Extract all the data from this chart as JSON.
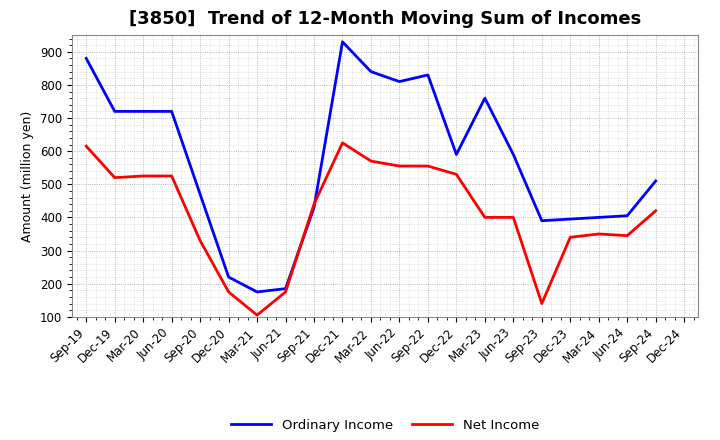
{
  "title": "[3850]  Trend of 12-Month Moving Sum of Incomes",
  "ylabel": "Amount (million yen)",
  "background_color": "#ffffff",
  "grid_color": "#999999",
  "x_labels": [
    "Sep-19",
    "Dec-19",
    "Mar-20",
    "Jun-20",
    "Sep-20",
    "Dec-20",
    "Mar-21",
    "Jun-21",
    "Sep-21",
    "Dec-21",
    "Mar-22",
    "Jun-22",
    "Sep-22",
    "Dec-22",
    "Mar-23",
    "Jun-23",
    "Sep-23",
    "Dec-23",
    "Mar-24",
    "Jun-24",
    "Sep-24",
    "Dec-24"
  ],
  "ordinary_income": [
    880,
    720,
    720,
    720,
    470,
    220,
    175,
    185,
    430,
    930,
    840,
    810,
    830,
    590,
    760,
    590,
    390,
    395,
    400,
    405,
    510,
    null
  ],
  "net_income": [
    615,
    520,
    525,
    525,
    330,
    175,
    105,
    175,
    440,
    625,
    570,
    555,
    555,
    530,
    400,
    400,
    140,
    340,
    350,
    345,
    420,
    null
  ],
  "ordinary_color": "#0000ff",
  "net_color": "#ff0000",
  "ylim": [
    100,
    950
  ],
  "yticks": [
    100,
    200,
    300,
    400,
    500,
    600,
    700,
    800,
    900
  ],
  "line_width": 2.0,
  "legend_labels": [
    "Ordinary Income",
    "Net Income"
  ],
  "title_fontsize": 13,
  "axis_label_fontsize": 9,
  "tick_fontsize": 8.5
}
